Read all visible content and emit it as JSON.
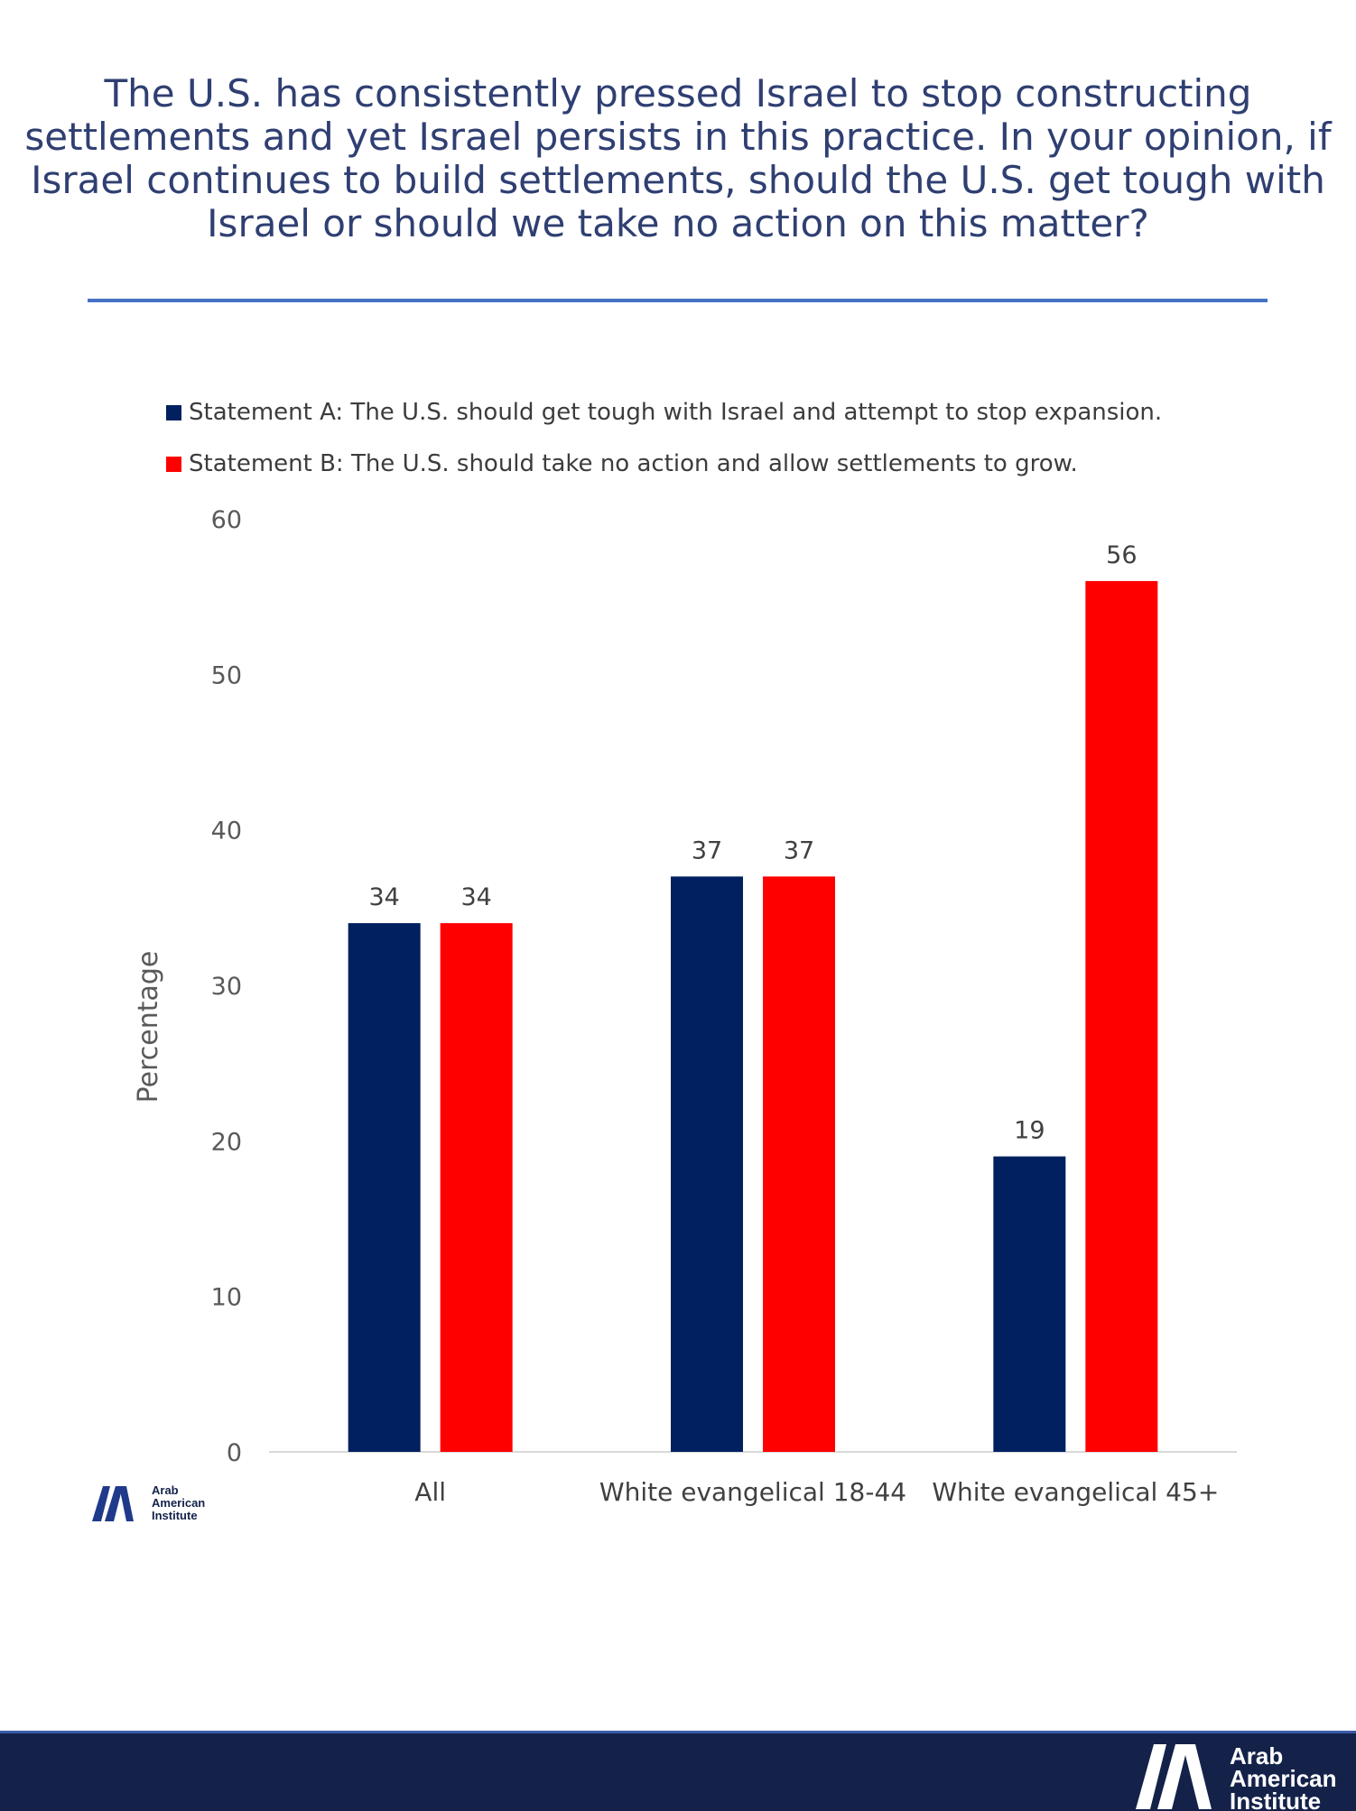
{
  "title": "The U.S. has consistently pressed Israel to stop constructing settlements and yet Israel persists in this practice. In your opinion, if Israel continues to build  settlements, should the U.S. get tough with Israel or should we take no action on this matter?",
  "logo": {
    "line1": "Arab",
    "line2": "American",
    "line3": "Institute"
  },
  "colors": {
    "title": "#2F3F72",
    "rule": "#4472C4",
    "footer": "#14224A"
  },
  "chart_data": {
    "type": "bar",
    "categories": [
      "All",
      "White evangelical 18-44",
      "White evangelical 45+"
    ],
    "series": [
      {
        "name": "Statement A: The U.S. should get tough with Israel and attempt to stop expansion.",
        "values": [
          34,
          37,
          19
        ],
        "color": "#002060"
      },
      {
        "name": "Statement B: The U.S. should take no action and allow settlements to grow.",
        "values": [
          34,
          37,
          56
        ],
        "color": "#FF0000"
      }
    ],
    "ylabel": "Percentage",
    "xlabel": "",
    "ylim": [
      0,
      60
    ],
    "yticks": [
      0,
      10,
      20,
      30,
      40,
      50,
      60
    ],
    "legend": "top",
    "grid": false
  }
}
